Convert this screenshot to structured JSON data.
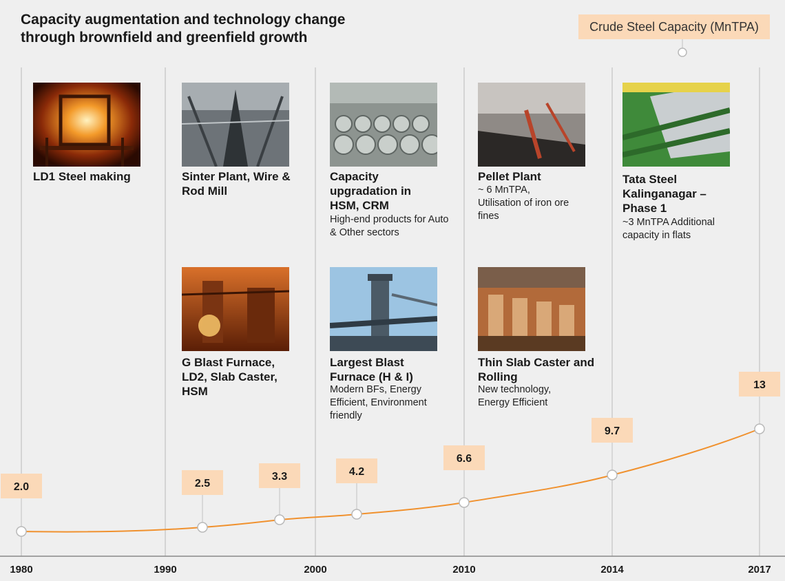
{
  "header": {
    "title_line1": "Capacity augmentation and technology change",
    "title_line2": "through brownfield and greenfield growth",
    "legend": "Crude Steel Capacity (MnTPA)"
  },
  "events": [
    {
      "id": "ld1",
      "photo": "steelmaking-furnace-photo",
      "title": "LD1 Steel making",
      "desc": ""
    },
    {
      "id": "sinter",
      "photo": "sinter-plant-photo",
      "title": "Sinter Plant, Wire & Rod Mill",
      "desc": ""
    },
    {
      "id": "gblast",
      "photo": "blast-furnace-interior-photo",
      "title": "G Blast Furnace, LD2, Slab Caster, HSM",
      "desc": ""
    },
    {
      "id": "hsm",
      "photo": "steel-coils-photo",
      "title": "Capacity upgradation in HSM, CRM",
      "desc": "High-end products for Auto & Other sectors"
    },
    {
      "id": "largest",
      "photo": "blast-furnace-tower-photo",
      "title": "Largest Blast Furnace (H & I)",
      "desc": "Modern BFs, Energy Efficient, Environment friendly"
    },
    {
      "id": "pellet",
      "photo": "pellet-plant-photo",
      "title": "Pellet Plant",
      "desc": "~ 6 MnTPA, Utilisation of iron ore fines"
    },
    {
      "id": "thinslab",
      "photo": "rolling-mill-photo",
      "title": "Thin Slab Caster and Rolling",
      "desc": "New technology, Energy Efficient"
    },
    {
      "id": "kpo",
      "photo": "steel-sheet-rollers-photo",
      "title": "Tata Steel Kalinganagar – Phase 1",
      "desc": "~3 MnTPA Additional capacity in flats"
    }
  ],
  "chart_data": {
    "type": "line",
    "title": "Crude Steel Capacity (MnTPA)",
    "year_ticks": [
      "1980",
      "1990",
      "2000",
      "2010",
      "2014",
      "2017"
    ],
    "points": [
      {
        "label": "2.0",
        "value": 2.0
      },
      {
        "label": "2.5",
        "value": 2.5
      },
      {
        "label": "3.3",
        "value": 3.3
      },
      {
        "label": "4.2",
        "value": 4.2
      },
      {
        "label": "6.6",
        "value": 6.6
      },
      {
        "label": "9.7",
        "value": 9.7
      },
      {
        "label": "13",
        "value": 13
      }
    ],
    "line_color": "#f0912e",
    "label_box_color": "#fbd9b8"
  }
}
